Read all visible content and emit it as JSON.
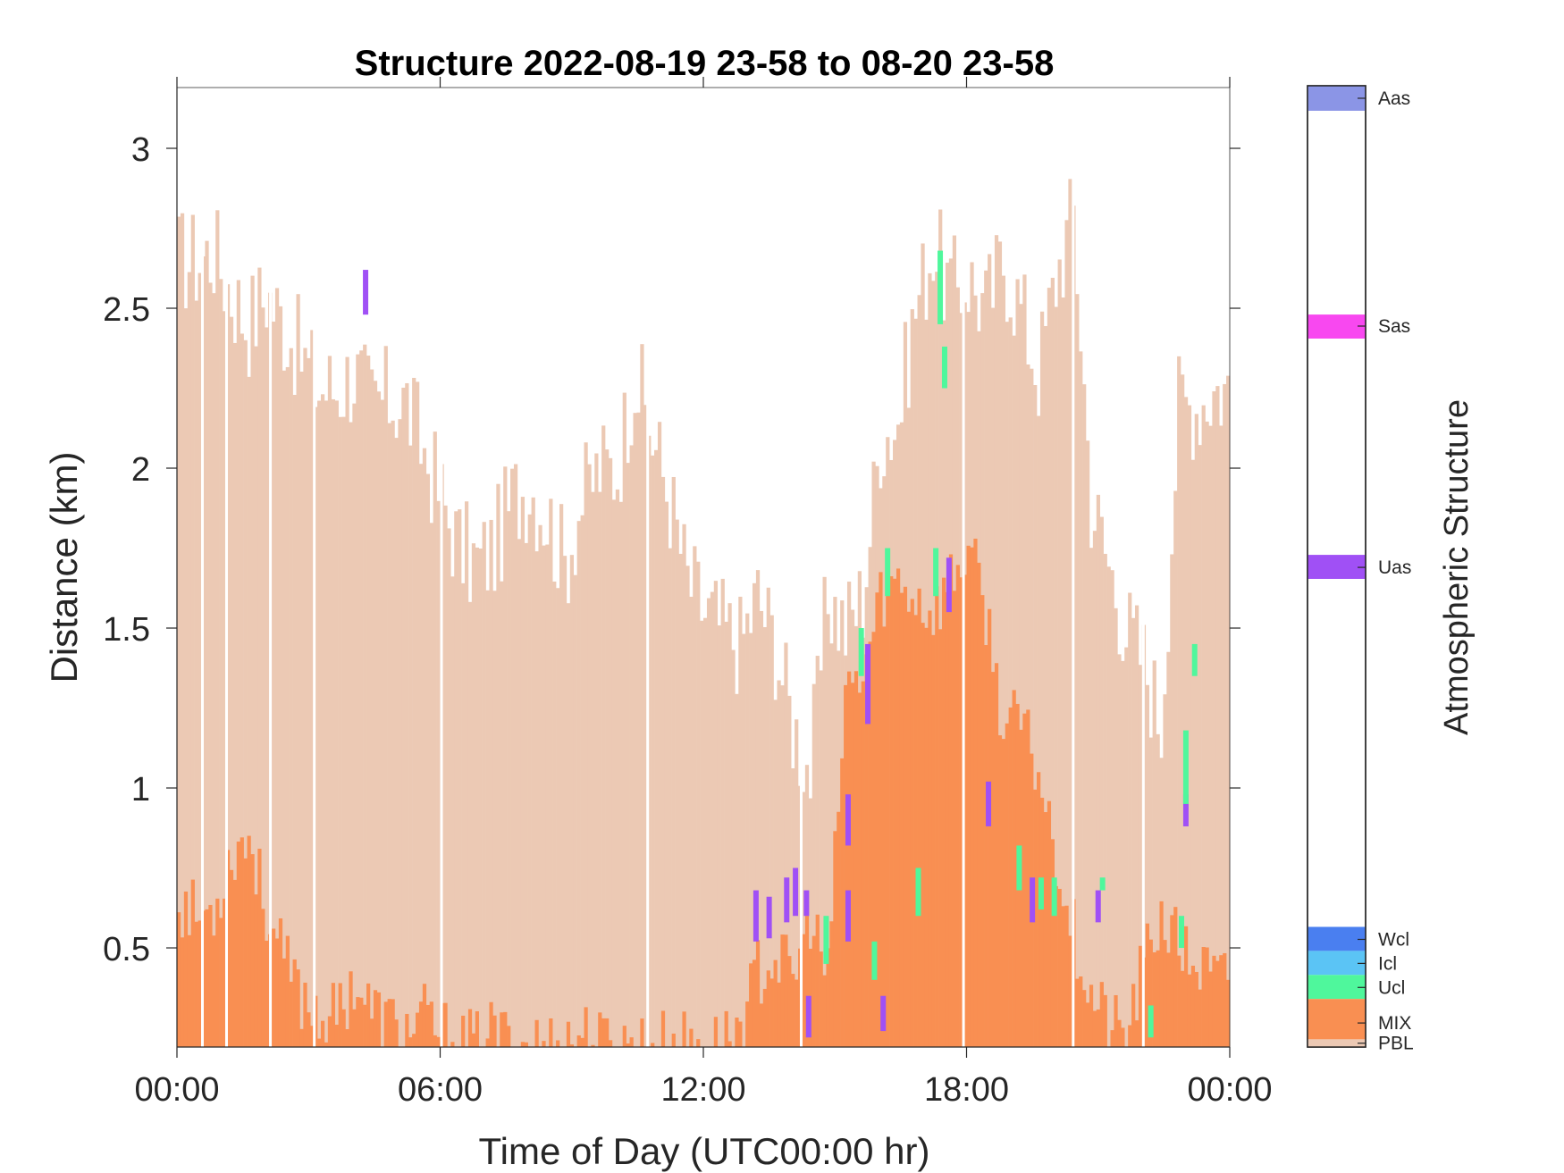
{
  "chart_data": {
    "type": "heatmap",
    "title": "Structure 2022-08-19 23-58 to 08-20 23-58",
    "xlabel": "Time of Day (UTC00:00 hr)",
    "ylabel": "Distance (km)",
    "xlim": [
      0,
      24
    ],
    "ylim": [
      0.19,
      3.19
    ],
    "x_ticks": [
      "00:00",
      "06:00",
      "12:00",
      "18:00",
      "00:00"
    ],
    "y_ticks": [
      "0.5",
      "1",
      "1.5",
      "2",
      "2.5",
      "3"
    ],
    "colorbar": {
      "title": "Atmospheric Structure",
      "categories": [
        {
          "name": "Aas",
          "color": "#8b95e6"
        },
        {
          "name": "Sas",
          "color": "#f848f0"
        },
        {
          "name": "Uas",
          "color": "#a050f5"
        },
        {
          "name": "Wcl",
          "color": "#4a7ff0"
        },
        {
          "name": "Icl",
          "color": "#5bc4f5"
        },
        {
          "name": "Ucl",
          "color": "#4ff79c"
        },
        {
          "name": "MIX",
          "color": "#f98f52"
        },
        {
          "name": "PBL",
          "color": "#ecc9b4"
        }
      ]
    },
    "series": [
      {
        "name": "PBL",
        "x": [
          0.2,
          0.6,
          1.0,
          1.4,
          1.8,
          2.2,
          2.6,
          3.0,
          3.4,
          3.8,
          4.2,
          4.6,
          5.0,
          5.4,
          5.8,
          6.2,
          6.6,
          7.0,
          7.4,
          7.8,
          8.2,
          8.6,
          9.0,
          9.4,
          9.8,
          10.2,
          10.6,
          11.0,
          11.4,
          11.8,
          12.2,
          12.6,
          13.0,
          13.4,
          13.8,
          14.2,
          14.6,
          15.0,
          15.4,
          15.8,
          16.2,
          16.6,
          17.0,
          17.4,
          17.8,
          18.2,
          18.6,
          19.0,
          19.4,
          19.8,
          20.2,
          20.6,
          21.0,
          21.4,
          21.8,
          22.2,
          22.6,
          23.0,
          23.4,
          23.8
        ],
        "values": [
          2.65,
          2.65,
          2.68,
          2.55,
          2.45,
          2.55,
          2.45,
          2.35,
          2.25,
          2.25,
          2.3,
          2.2,
          2.22,
          2.2,
          2.05,
          1.9,
          1.75,
          1.7,
          1.75,
          1.9,
          1.95,
          1.85,
          1.7,
          1.9,
          2.0,
          2.0,
          2.3,
          2.1,
          1.9,
          1.65,
          1.55,
          1.5,
          1.45,
          1.6,
          1.45,
          1.2,
          1.05,
          1.6,
          1.5,
          1.6,
          2.1,
          2.15,
          2.5,
          2.7,
          2.55,
          2.6,
          2.5,
          2.65,
          2.5,
          2.3,
          2.6,
          2.8,
          1.9,
          1.7,
          1.5,
          1.4,
          1.2,
          2.2,
          2.2,
          2.25
        ]
      },
      {
        "name": "MIX",
        "x": [
          0.2,
          0.6,
          1.0,
          1.4,
          1.8,
          2.2,
          2.6,
          3.0,
          3.4,
          3.8,
          4.2,
          4.6,
          5.0,
          5.4,
          5.8,
          6.2,
          6.6,
          7.0,
          7.4,
          7.8,
          8.2,
          8.6,
          9.0,
          9.4,
          9.8,
          10.2,
          10.6,
          11.0,
          11.4,
          11.8,
          12.2,
          12.6,
          13.0,
          13.4,
          13.8,
          14.2,
          14.6,
          15.0,
          15.4,
          15.8,
          16.2,
          16.6,
          17.0,
          17.4,
          17.8,
          18.2,
          18.6,
          19.0,
          19.4,
          19.8,
          20.2,
          20.6,
          21.0,
          21.4,
          21.8,
          22.2,
          22.6,
          23.0,
          23.4,
          23.8
        ],
        "values": [
          0.65,
          0.6,
          0.62,
          0.8,
          0.85,
          0.62,
          0.45,
          0.35,
          0.3,
          0.28,
          0.4,
          0.3,
          0.27,
          0.24,
          0.28,
          0.24,
          0.2,
          0.2,
          0.24,
          0.2,
          0.2,
          0.2,
          0.2,
          0.24,
          0.2,
          0.2,
          0.2,
          0.2,
          0.2,
          0.2,
          0.2,
          0.2,
          0.26,
          0.42,
          0.48,
          0.4,
          0.6,
          0.4,
          1.3,
          1.35,
          1.6,
          1.65,
          1.6,
          1.55,
          1.65,
          1.75,
          1.55,
          1.2,
          1.2,
          1.05,
          0.8,
          0.55,
          0.35,
          0.27,
          0.22,
          0.45,
          0.6,
          0.5,
          0.45,
          0.4
        ]
      }
    ],
    "features": [
      {
        "class": "Uas",
        "x": 4.3,
        "y": [
          2.48,
          2.62
        ]
      },
      {
        "class": "Uas",
        "x": 13.2,
        "y": [
          0.52,
          0.68
        ]
      },
      {
        "class": "Uas",
        "x": 13.5,
        "y": [
          0.53,
          0.66
        ]
      },
      {
        "class": "Uas",
        "x": 13.9,
        "y": [
          0.58,
          0.72
        ]
      },
      {
        "class": "Uas",
        "x": 14.1,
        "y": [
          0.6,
          0.75
        ]
      },
      {
        "class": "Uas",
        "x": 14.35,
        "y": [
          0.6,
          0.68
        ]
      },
      {
        "class": "Uas",
        "x": 14.4,
        "y": [
          0.22,
          0.35
        ]
      },
      {
        "class": "Uas",
        "x": 15.3,
        "y": [
          0.82,
          0.98
        ]
      },
      {
        "class": "Uas",
        "x": 15.3,
        "y": [
          0.52,
          0.68
        ]
      },
      {
        "class": "Uas",
        "x": 15.75,
        "y": [
          1.2,
          1.45
        ]
      },
      {
        "class": "Uas",
        "x": 16.1,
        "y": [
          0.24,
          0.35
        ]
      },
      {
        "class": "Uas",
        "x": 17.6,
        "y": [
          1.55,
          1.72
        ]
      },
      {
        "class": "Uas",
        "x": 18.5,
        "y": [
          0.88,
          1.02
        ]
      },
      {
        "class": "Uas",
        "x": 19.5,
        "y": [
          0.58,
          0.72
        ]
      },
      {
        "class": "Uas",
        "x": 21.0,
        "y": [
          0.58,
          0.68
        ]
      },
      {
        "class": "Uas",
        "x": 23.0,
        "y": [
          0.88,
          0.98
        ]
      },
      {
        "class": "Ucl",
        "x": 14.8,
        "y": [
          0.45,
          0.6
        ]
      },
      {
        "class": "Ucl",
        "x": 15.6,
        "y": [
          1.35,
          1.5
        ]
      },
      {
        "class": "Ucl",
        "x": 15.9,
        "y": [
          0.4,
          0.52
        ]
      },
      {
        "class": "Ucl",
        "x": 16.2,
        "y": [
          1.6,
          1.75
        ]
      },
      {
        "class": "Ucl",
        "x": 16.9,
        "y": [
          0.6,
          0.75
        ]
      },
      {
        "class": "Ucl",
        "x": 17.3,
        "y": [
          1.6,
          1.75
        ]
      },
      {
        "class": "Ucl",
        "x": 17.4,
        "y": [
          2.45,
          2.68
        ]
      },
      {
        "class": "Ucl",
        "x": 17.5,
        "y": [
          2.25,
          2.38
        ]
      },
      {
        "class": "Ucl",
        "x": 19.2,
        "y": [
          0.68,
          0.82
        ]
      },
      {
        "class": "Ucl",
        "x": 19.7,
        "y": [
          0.62,
          0.72
        ]
      },
      {
        "class": "Ucl",
        "x": 20.0,
        "y": [
          0.6,
          0.72
        ]
      },
      {
        "class": "Ucl",
        "x": 21.1,
        "y": [
          0.68,
          0.72
        ]
      },
      {
        "class": "Ucl",
        "x": 22.2,
        "y": [
          0.22,
          0.32
        ]
      },
      {
        "class": "Ucl",
        "x": 22.9,
        "y": [
          0.5,
          0.6
        ]
      },
      {
        "class": "Ucl",
        "x": 23.2,
        "y": [
          1.35,
          1.45
        ]
      },
      {
        "class": "Ucl",
        "x": 23.0,
        "y": [
          0.95,
          1.18
        ]
      }
    ],
    "grid": false
  }
}
